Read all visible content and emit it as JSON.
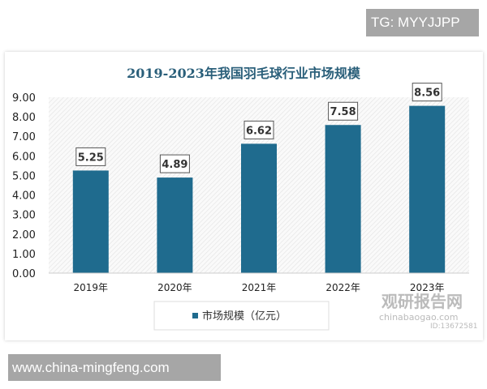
{
  "tag": "TG: MYYJJPP",
  "site": "www.china-mingfeng.com",
  "watermark": {
    "name": "观研报告网",
    "url": "chinabaogao.com",
    "id": "ID:13672581"
  },
  "colors": {
    "bar": "#1f6b8e",
    "title": "#2a5f7a"
  },
  "chart_data": {
    "type": "bar",
    "title": "2019-2023年我国羽毛球行业市场规模",
    "categories": [
      "2019年",
      "2020年",
      "2021年",
      "2022年",
      "2023年"
    ],
    "series": [
      {
        "name": "市场规模（亿元）",
        "values": [
          5.25,
          4.89,
          6.62,
          7.58,
          8.56
        ]
      }
    ],
    "data_labels": [
      "5.25",
      "4.89",
      "6.62",
      "7.58",
      "8.56"
    ],
    "yticks": [
      "0.00",
      "1.00",
      "2.00",
      "3.00",
      "4.00",
      "5.00",
      "6.00",
      "7.00",
      "8.00",
      "9.00"
    ],
    "ylim": [
      0,
      9
    ],
    "legend": "bottom",
    "grid": false
  }
}
